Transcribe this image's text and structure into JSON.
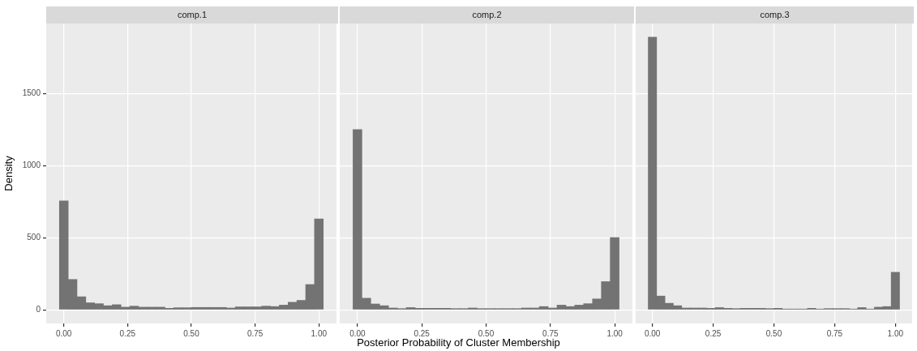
{
  "chart_data": [
    {
      "type": "histogram",
      "title": "comp.1",
      "ylabel": "Density",
      "color": "#737373",
      "grid": true,
      "bins": [
        -0.0172,
        0.0172,
        0.0517,
        0.0862,
        0.1207,
        0.1552,
        0.1897,
        0.2241,
        0.2586,
        0.2931,
        0.3276,
        0.3621,
        0.3966,
        0.431,
        0.4655,
        0.5,
        0.5345,
        0.569,
        0.6034,
        0.6379,
        0.6724,
        0.7069,
        0.7414,
        0.7759,
        0.8103,
        0.8448,
        0.8793,
        0.9138,
        0.9483,
        0.9828,
        1.0172
      ],
      "values": [
        755,
        210,
        90,
        48,
        42,
        28,
        35,
        18,
        25,
        18,
        18,
        18,
        10,
        14,
        14,
        16,
        16,
        16,
        16,
        12,
        20,
        20,
        20,
        25,
        22,
        32,
        52,
        65,
        175,
        630
      ],
      "xlim": [
        -0.069,
        1.069
      ],
      "xticks": [
        {
          "value": 0,
          "label": "0.00"
        },
        {
          "value": 0.25,
          "label": "0.25"
        },
        {
          "value": 0.5,
          "label": "0.50"
        },
        {
          "value": 0.75,
          "label": "0.75"
        },
        {
          "value": 1,
          "label": "1.00"
        }
      ],
      "ylim": [
        -95,
        1985
      ],
      "yticks": [
        0,
        500,
        1000,
        1500
      ]
    },
    {
      "type": "histogram",
      "title": "comp.2",
      "xlabel": "Posterior Probability of Cluster Membership",
      "color": "#737373",
      "grid": true,
      "tick_labels": "x",
      "bins": [
        -0.0172,
        0.0172,
        0.0517,
        0.0862,
        0.1207,
        0.1552,
        0.1897,
        0.2241,
        0.2586,
        0.2931,
        0.3276,
        0.3621,
        0.3966,
        0.431,
        0.4655,
        0.5,
        0.5345,
        0.569,
        0.6034,
        0.6379,
        0.6724,
        0.7069,
        0.7414,
        0.7759,
        0.8103,
        0.8448,
        0.8793,
        0.9138,
        0.9483,
        0.9828,
        1.0172
      ],
      "values": [
        1250,
        80,
        40,
        28,
        12,
        8,
        15,
        10,
        10,
        10,
        10,
        8,
        8,
        12,
        8,
        8,
        8,
        8,
        8,
        12,
        12,
        22,
        12,
        32,
        22,
        32,
        42,
        75,
        195,
        500
      ],
      "xlim": [
        -0.069,
        1.069
      ],
      "xticks": [
        {
          "value": 0,
          "label": "0.00"
        },
        {
          "value": 0.25,
          "label": "0.25"
        },
        {
          "value": 0.5,
          "label": "0.50"
        },
        {
          "value": 0.75,
          "label": "0.75"
        },
        {
          "value": 1,
          "label": "1.00"
        }
      ],
      "ylim": [
        -95,
        1985
      ],
      "yticks": [
        0,
        500,
        1000,
        1500
      ]
    },
    {
      "type": "histogram",
      "title": "comp.3",
      "color": "#737373",
      "grid": true,
      "tick_labels": "x",
      "bins": [
        -0.0172,
        0.0172,
        0.0517,
        0.0862,
        0.1207,
        0.1552,
        0.1897,
        0.2241,
        0.2586,
        0.2931,
        0.3276,
        0.3621,
        0.3966,
        0.431,
        0.4655,
        0.5,
        0.5345,
        0.569,
        0.6034,
        0.6379,
        0.6724,
        0.7069,
        0.7414,
        0.7759,
        0.8103,
        0.8448,
        0.8793,
        0.9138,
        0.9483,
        0.9828,
        1.0172
      ],
      "values": [
        1890,
        95,
        45,
        28,
        12,
        12,
        12,
        10,
        15,
        10,
        8,
        10,
        10,
        10,
        8,
        10,
        5,
        5,
        5,
        10,
        5,
        8,
        8,
        8,
        5,
        15,
        5,
        18,
        22,
        260
      ],
      "xlim": [
        -0.069,
        1.069
      ],
      "xticks": [
        {
          "value": 0,
          "label": "0.00"
        },
        {
          "value": 0.25,
          "label": "0.25"
        },
        {
          "value": 0.5,
          "label": "0.50"
        },
        {
          "value": 0.75,
          "label": "0.75"
        },
        {
          "value": 1,
          "label": "1.00"
        }
      ],
      "ylim": [
        -95,
        1985
      ],
      "yticks": [
        0,
        500,
        1000,
        1500
      ]
    }
  ]
}
